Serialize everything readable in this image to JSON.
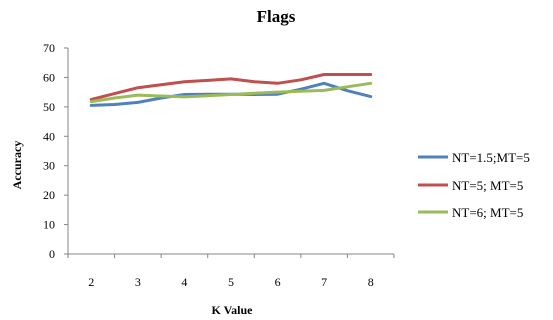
{
  "chart_data": {
    "type": "line",
    "title": "Flags",
    "xlabel": "K Value",
    "ylabel": "Accuracy",
    "x": [
      2,
      3,
      4,
      5,
      6,
      7,
      8
    ],
    "ylim": [
      0,
      70
    ],
    "yticks": [
      0,
      10,
      20,
      30,
      40,
      50,
      60,
      70
    ],
    "grid": false,
    "legend_position": "right",
    "series": [
      {
        "name": "NT=1.5;MT=5",
        "color": "#4f81bd",
        "x": [
          2,
          2.5,
          3,
          3.5,
          4,
          4.5,
          5,
          5.5,
          6,
          6.5,
          7,
          7.5,
          8
        ],
        "values": [
          50.5,
          50.8,
          51.5,
          53,
          54.2,
          54.3,
          54.3,
          54.2,
          54.3,
          56,
          58,
          55.5,
          53.5
        ]
      },
      {
        "name": "NT=5; MT=5",
        "color": "#c0504d",
        "x": [
          2,
          2.5,
          3,
          3.5,
          4,
          4.5,
          5,
          5.5,
          6,
          6.5,
          7,
          7.5,
          8
        ],
        "values": [
          52.5,
          54.5,
          56.5,
          57.5,
          58.5,
          59,
          59.5,
          58.5,
          58,
          59.2,
          61,
          61,
          61
        ]
      },
      {
        "name": "NT=6; MT=5",
        "color": "#9bbb59",
        "x": [
          2,
          2.5,
          3,
          3.5,
          4,
          4.5,
          5,
          5.5,
          6,
          6.5,
          7,
          7.5,
          8
        ],
        "values": [
          51.8,
          53,
          54,
          53.7,
          53.4,
          53.8,
          54.2,
          54.6,
          55,
          55.3,
          55.6,
          56.8,
          58
        ]
      }
    ]
  }
}
